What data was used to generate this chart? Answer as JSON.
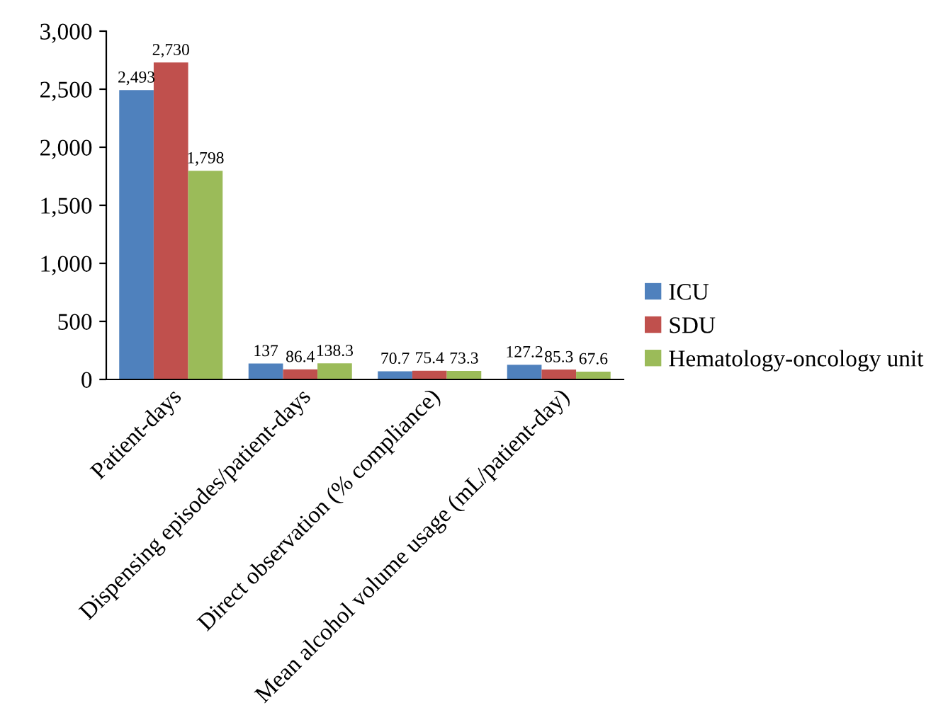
{
  "chart_data": {
    "type": "bar",
    "categories": [
      "Patient-days",
      "Dispensing episodes/patient-days",
      "Direct observation (% compliance)",
      "Mean alcohol volume usage (mL/patient-day)"
    ],
    "series": [
      {
        "name": "ICU",
        "color": "#4f81bd",
        "values": [
          2493,
          137,
          70.7,
          127.2
        ],
        "value_labels": [
          "2,493",
          "137",
          "70.7",
          "127.2"
        ]
      },
      {
        "name": "SDU",
        "color": "#c0504d",
        "values": [
          2730,
          86.4,
          75.4,
          85.3
        ],
        "value_labels": [
          "2,730",
          "86.4",
          "75.4",
          "85.3"
        ]
      },
      {
        "name": "Hematology-oncology unit",
        "color": "#9bbb59",
        "values": [
          1798,
          138.3,
          73.3,
          67.6
        ],
        "value_labels": [
          "1,798",
          "138.3",
          "73.3",
          "67.6"
        ]
      }
    ],
    "ylim": [
      0,
      3000
    ],
    "yticks": [
      0,
      {
        "value": 500,
        "label": "500"
      },
      {
        "value": 1000,
        "label": "1,000"
      },
      {
        "value": 1500,
        "label": "1,500"
      },
      {
        "value": 2000,
        "label": "2,000"
      },
      {
        "value": 2500,
        "label": "2,500"
      },
      {
        "value": 3000,
        "label": "3,000"
      }
    ],
    "grid": false,
    "legend": "right"
  }
}
